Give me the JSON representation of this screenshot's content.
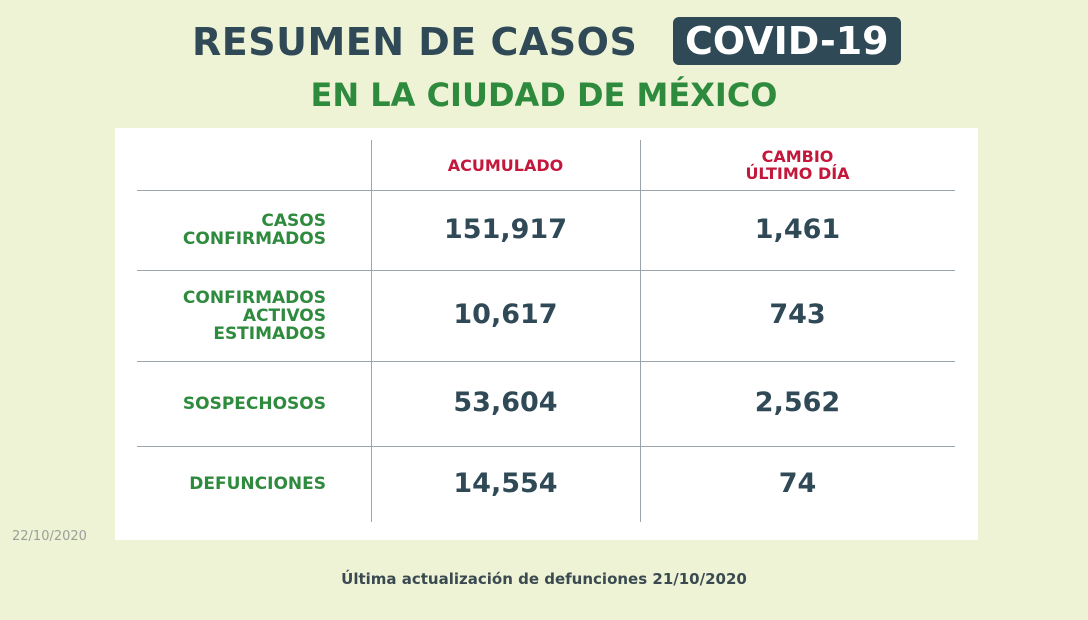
{
  "header": {
    "title": "RESUMEN DE CASOS",
    "badge": "COVID-19",
    "subtitle": "EN LA CIUDAD DE MÉXICO"
  },
  "table": {
    "columns": [
      [
        "ACUMULADO"
      ],
      [
        "CAMBIO",
        "ÚLTIMO DÍA"
      ]
    ],
    "rows": [
      {
        "label": [
          "CASOS",
          "CONFIRMADOS"
        ],
        "cells": [
          "151,917",
          "1,461"
        ]
      },
      {
        "label": [
          "CONFIRMADOS",
          "ACTIVOS",
          "ESTIMADOS"
        ],
        "cells": [
          "10,617",
          "743"
        ]
      },
      {
        "label": [
          "SOSPECHOSOS"
        ],
        "cells": [
          "53,604",
          "2,562"
        ]
      },
      {
        "label": [
          "DEFUNCIONES"
        ],
        "cells": [
          "14,554",
          "74"
        ]
      }
    ]
  },
  "date": "22/10/2020",
  "footer": "Última actualización de defunciones 21/10/2020"
}
